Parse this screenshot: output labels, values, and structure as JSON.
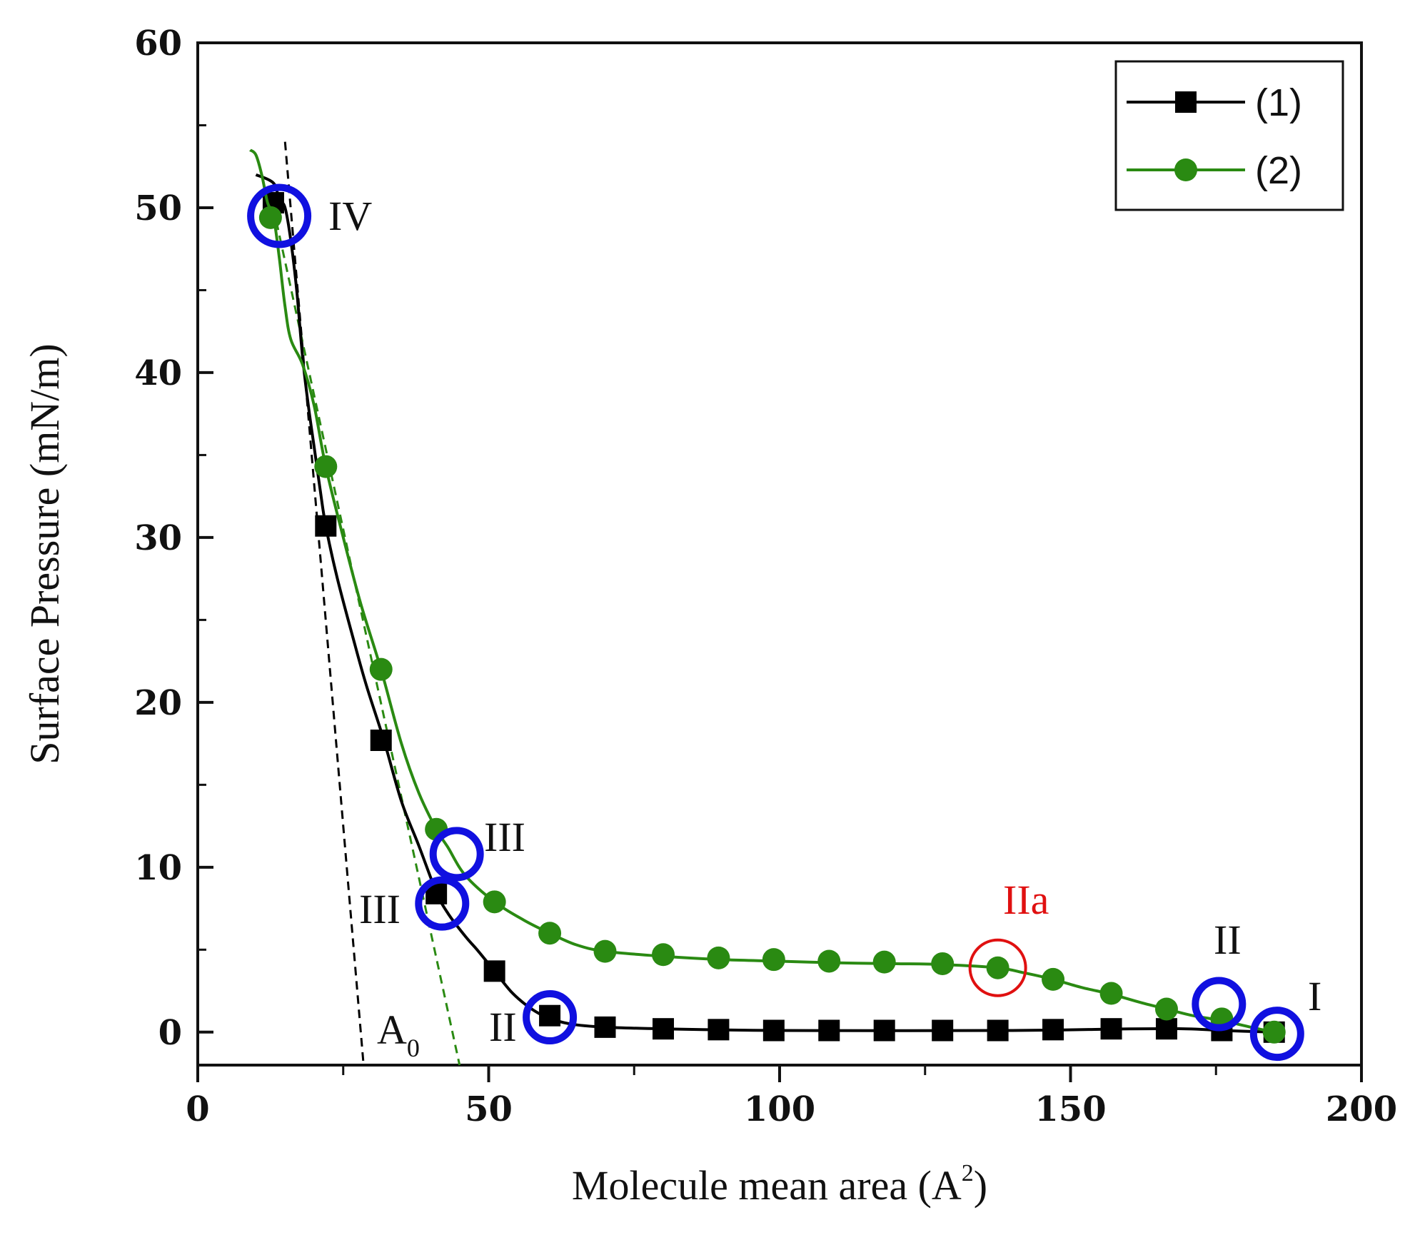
{
  "chart_data": {
    "type": "line",
    "title": "",
    "xlabel": "Molecule mean area (A",
    "xlabel_sup": "2",
    "xlabel_close": ")",
    "ylabel": "Surface Pressure (mN/m)",
    "xlim": [
      0,
      200
    ],
    "ylim": [
      -2,
      60
    ],
    "xticks": [
      0,
      50,
      100,
      150,
      200
    ],
    "yticks": [
      0,
      10,
      20,
      30,
      40,
      50,
      60
    ],
    "grid": false,
    "legend_position": "top-right",
    "series": [
      {
        "name": "(1)",
        "color": "#000000",
        "marker": "square",
        "curve": [
          [
            10,
            52
          ],
          [
            13,
            51.5
          ],
          [
            14,
            50.5
          ],
          [
            15,
            50
          ],
          [
            16,
            48
          ],
          [
            17,
            45
          ],
          [
            18,
            41
          ],
          [
            19,
            38
          ],
          [
            20,
            35.5
          ],
          [
            21,
            33
          ],
          [
            22,
            30.7
          ],
          [
            24,
            27.5
          ],
          [
            27,
            23.5
          ],
          [
            29,
            21
          ],
          [
            32,
            17.7
          ],
          [
            35,
            14
          ],
          [
            38,
            11.3
          ],
          [
            41,
            8.5
          ],
          [
            43,
            7.2
          ],
          [
            46,
            5.8
          ],
          [
            48,
            5
          ],
          [
            51,
            3.7
          ],
          [
            54,
            2.4
          ],
          [
            57,
            1.5
          ],
          [
            60,
            0.9
          ],
          [
            64,
            0.5
          ],
          [
            70,
            0.3
          ],
          [
            80,
            0.2
          ],
          [
            100,
            0.1
          ],
          [
            140,
            0.1
          ],
          [
            160,
            0.2
          ],
          [
            170,
            0.2
          ],
          [
            176,
            0.1
          ],
          [
            185,
            0
          ]
        ],
        "points": [
          [
            13,
            50.3
          ],
          [
            22,
            30.7
          ],
          [
            31.5,
            17.7
          ],
          [
            41,
            8.4
          ],
          [
            51,
            3.7
          ],
          [
            60.5,
            1.0
          ],
          [
            70,
            0.3
          ],
          [
            80,
            0.2
          ],
          [
            89.5,
            0.15
          ],
          [
            99,
            0.1
          ],
          [
            108.5,
            0.1
          ],
          [
            118,
            0.1
          ],
          [
            128,
            0.1
          ],
          [
            137.5,
            0.1
          ],
          [
            147,
            0.15
          ],
          [
            157,
            0.2
          ],
          [
            166.5,
            0.2
          ],
          [
            176,
            0.1
          ],
          [
            185,
            0.0
          ]
        ]
      },
      {
        "name": "(2)",
        "color": "#2a8a12",
        "marker": "circle",
        "curve": [
          [
            9,
            53.5
          ],
          [
            10,
            53.2
          ],
          [
            11,
            52
          ],
          [
            12,
            50.3
          ],
          [
            13,
            49.5
          ],
          [
            14,
            47
          ],
          [
            15,
            44
          ],
          [
            16,
            42
          ],
          [
            18,
            40.5
          ],
          [
            20,
            38
          ],
          [
            22,
            34.3
          ],
          [
            25,
            30
          ],
          [
            28,
            26
          ],
          [
            31.5,
            22
          ],
          [
            35,
            17.5
          ],
          [
            38,
            14.5
          ],
          [
            41,
            12.3
          ],
          [
            43,
            11.2
          ],
          [
            46,
            9.5
          ],
          [
            51,
            7.9
          ],
          [
            56,
            6.8
          ],
          [
            60.5,
            6.0
          ],
          [
            65,
            5.3
          ],
          [
            70,
            4.9
          ],
          [
            80,
            4.6
          ],
          [
            90,
            4.4
          ],
          [
            100,
            4.3
          ],
          [
            110,
            4.2
          ],
          [
            120,
            4.15
          ],
          [
            128,
            4.1
          ],
          [
            137.5,
            3.9
          ],
          [
            142,
            3.6
          ],
          [
            147,
            3.2
          ],
          [
            152,
            2.7
          ],
          [
            157,
            2.3
          ],
          [
            162,
            1.8
          ],
          [
            166.5,
            1.4
          ],
          [
            171,
            1.0
          ],
          [
            176,
            0.7
          ],
          [
            181,
            0.3
          ],
          [
            185,
            0.0
          ]
        ],
        "points": [
          [
            12.5,
            49.4
          ],
          [
            22,
            34.3
          ],
          [
            31.5,
            22.0
          ],
          [
            41,
            12.3
          ],
          [
            51,
            7.9
          ],
          [
            60.5,
            6.0
          ],
          [
            70,
            4.9
          ],
          [
            80,
            4.7
          ],
          [
            89.5,
            4.5
          ],
          [
            99,
            4.4
          ],
          [
            108.5,
            4.3
          ],
          [
            118,
            4.25
          ],
          [
            128,
            4.15
          ],
          [
            137.5,
            3.9
          ],
          [
            147,
            3.2
          ],
          [
            157,
            2.35
          ],
          [
            166.5,
            1.4
          ],
          [
            176,
            0.8
          ],
          [
            185,
            0.0
          ]
        ]
      }
    ],
    "tangent_lines": [
      {
        "color": "#000000",
        "from": [
          15,
          54
        ],
        "to": [
          28.5,
          -2
        ]
      },
      {
        "color": "#2a8a12",
        "from": [
          13,
          50
        ],
        "to": [
          45,
          -2
        ]
      }
    ],
    "markers": [
      {
        "label": "IV",
        "x": 14,
        "y": 49.5,
        "color": "#1010e0"
      },
      {
        "label": "III",
        "x": 44.5,
        "y": 10.8,
        "color": "#1010e0"
      },
      {
        "label": "III",
        "x": 42,
        "y": 7.8,
        "color": "#1010e0"
      },
      {
        "label": "II",
        "x": 60.5,
        "y": 0.9,
        "color": "#1010e0"
      },
      {
        "label": "IIa",
        "x": 137.5,
        "y": 3.9,
        "color": "#e01010"
      },
      {
        "label": "II",
        "x": 175.5,
        "y": 1.7,
        "color": "#1010e0"
      },
      {
        "label": "I",
        "x": 185.5,
        "y": -0.1,
        "color": "#1010e0"
      }
    ],
    "annotations": [
      {
        "text": "A",
        "sub": "0"
      }
    ]
  }
}
